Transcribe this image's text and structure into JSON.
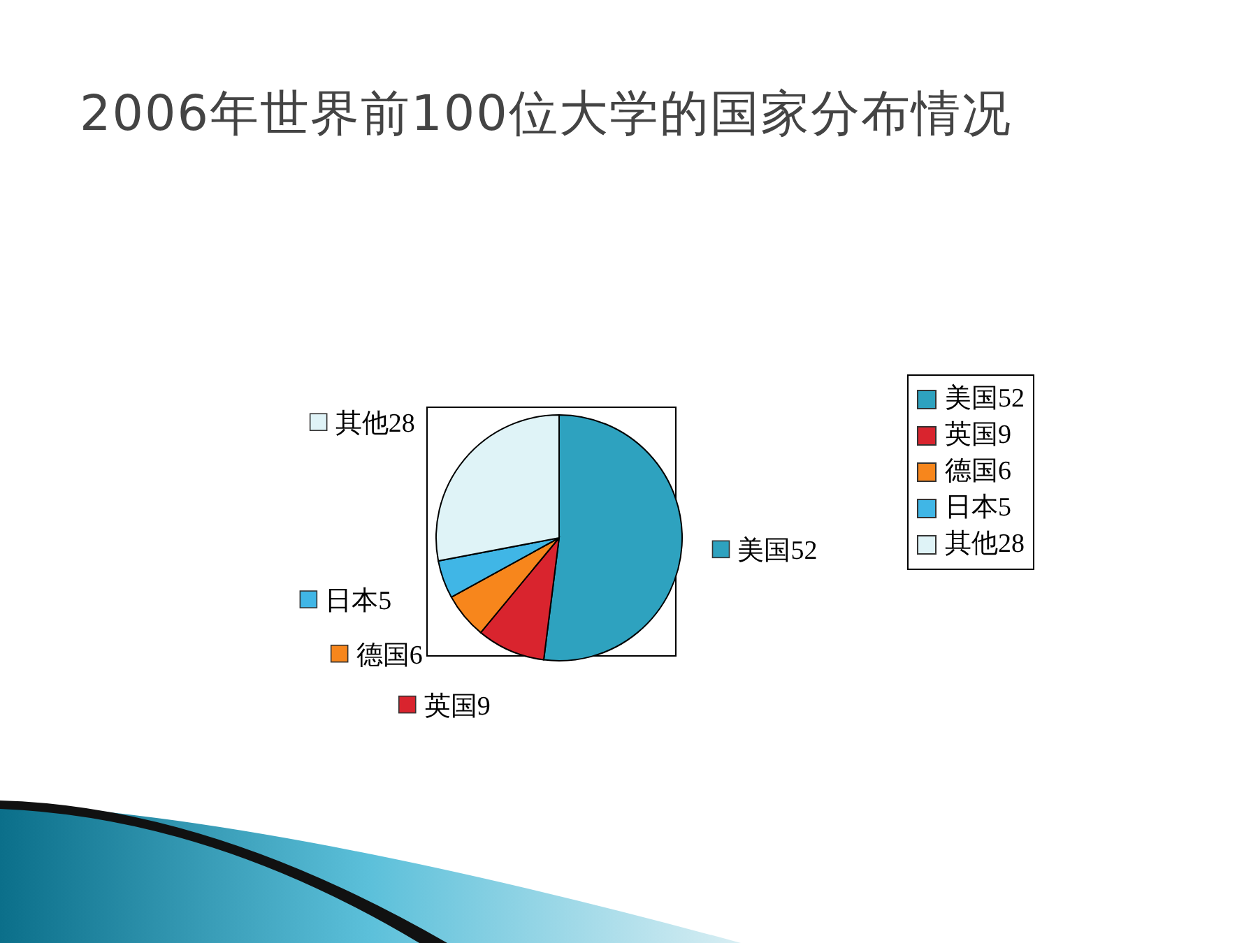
{
  "chart_data": {
    "type": "pie",
    "title": "2006年世界前100位大学的国家分布情况",
    "categories": [
      "美国52",
      "英国9",
      "德国6",
      "日本5",
      "其他28"
    ],
    "values": [
      52,
      9,
      6,
      5,
      28
    ],
    "colors": [
      "#2ea2bf",
      "#d9242e",
      "#f7861c",
      "#40b6e6",
      "#dff3f7"
    ],
    "legend": "right"
  }
}
